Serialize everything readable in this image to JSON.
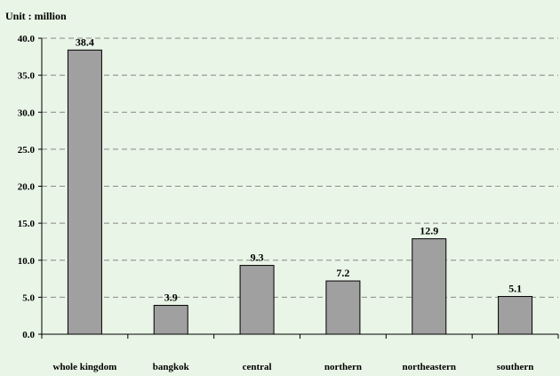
{
  "chart_data": {
    "type": "bar",
    "unit_label": "Unit : million",
    "categories": [
      "whole kingdom",
      "bangkok",
      "central",
      "northern",
      "northeastern",
      "southern"
    ],
    "values": [
      38.4,
      3.9,
      9.3,
      7.2,
      12.9,
      5.1
    ],
    "value_labels": [
      "38.4",
      "3.9",
      "9.3",
      "7.2",
      "12.9",
      "5.1"
    ],
    "y_ticks": [
      0,
      5,
      10,
      15,
      20,
      25,
      30,
      35,
      40
    ],
    "y_tick_labels": [
      "0.0",
      "5.0",
      "10.0",
      "15.0",
      "20.0",
      "25.0",
      "30.0",
      "35.0",
      "40.0"
    ],
    "ylim": [
      0,
      40
    ],
    "grid": true,
    "bar_color": "#a0a0a0",
    "background_color": "#e9f5e6"
  }
}
